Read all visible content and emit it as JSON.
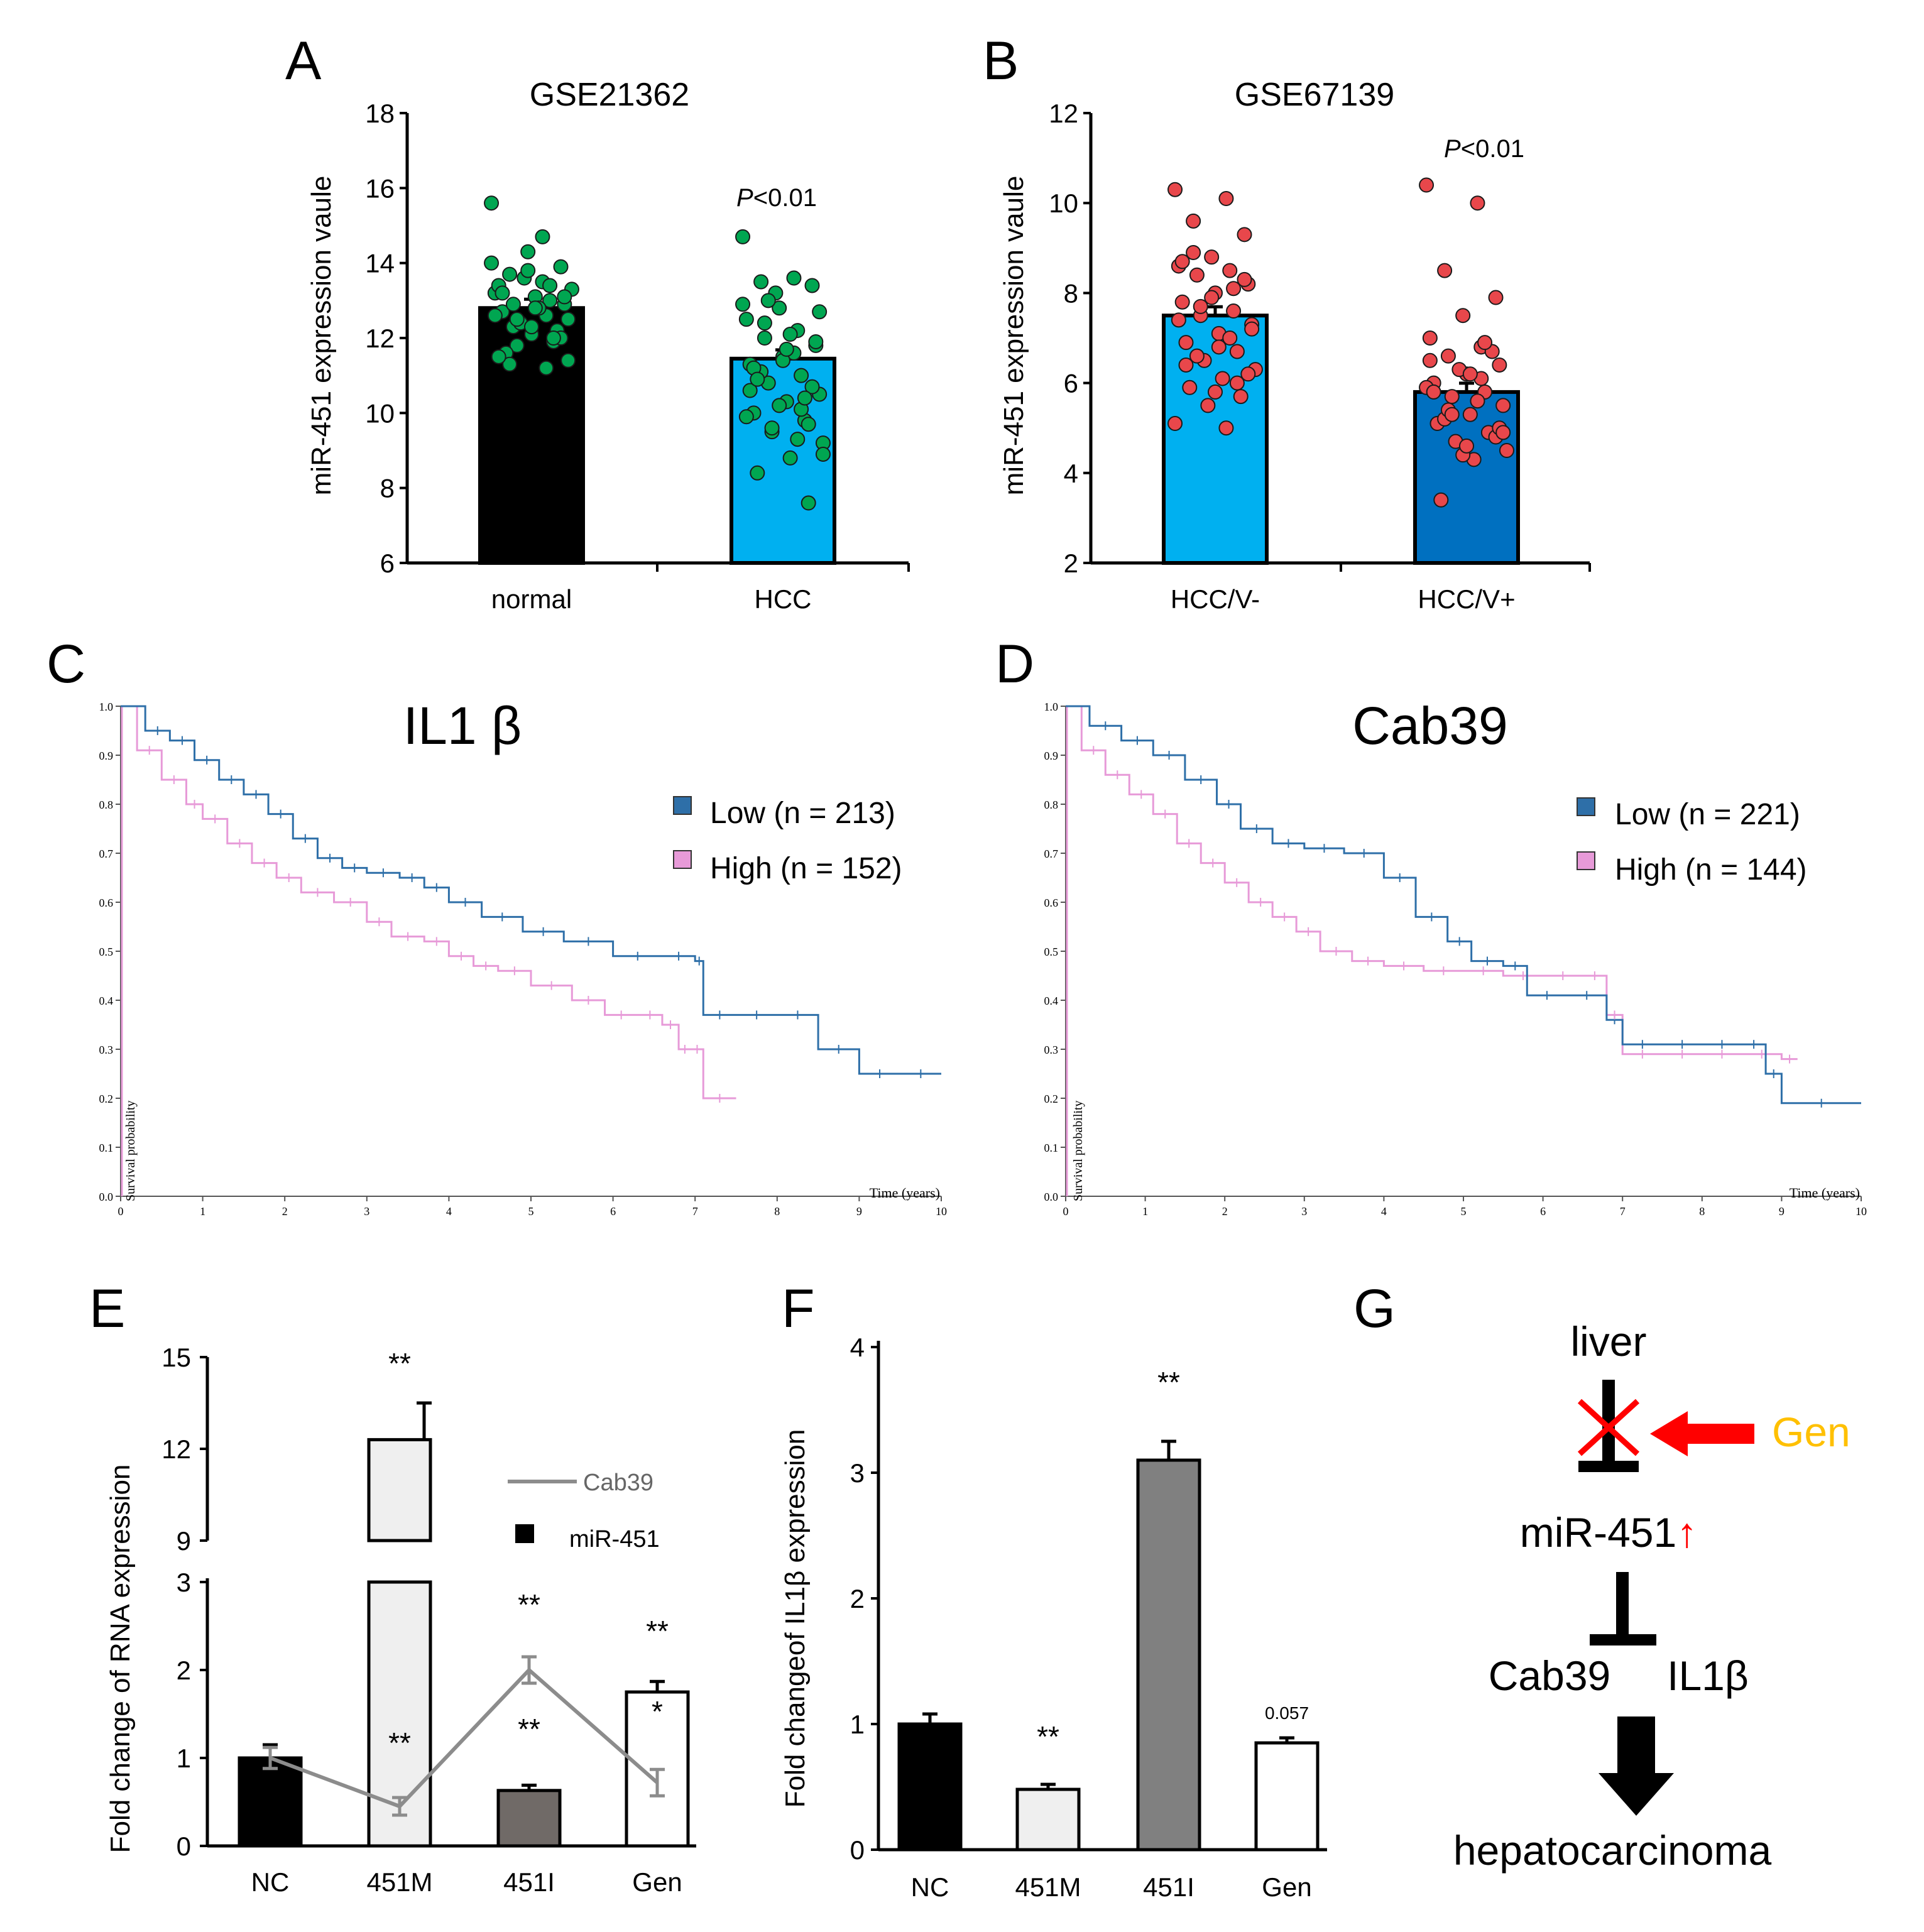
{
  "colors": {
    "black": "#000000",
    "light_blue": "#00b0f0",
    "dark_blue": "#0070c0",
    "green_dot": "#00a651",
    "red_dot": "#e8474b",
    "km_low": "#2e6fa8",
    "km_high": "#e79ad8",
    "light_gray": "#efefef",
    "mid_gray": "#808080",
    "dark_gray": "#706a67",
    "line_gray": "#8c8c8c",
    "red": "#ff0000",
    "orange": "#ffc000"
  },
  "chart_data": [
    {
      "panel": "A",
      "type": "bar",
      "title": "GSE21362",
      "ylabel": "miR-451 expression vaule",
      "ylim": [
        6,
        18
      ],
      "yticks": [
        "6",
        "8",
        "10",
        "12",
        "14",
        "16",
        "18"
      ],
      "categories": [
        "normal",
        "HCC"
      ],
      "values": [
        12.8,
        11.45
      ],
      "annotation": {
        "italic": "P",
        "text": "<0.01",
        "category": "HCC"
      },
      "points": [
        [
          15.6,
          13.5,
          13.7,
          13.9,
          14.3,
          13.2,
          12.6,
          12.3,
          12.9,
          12.1,
          13.4,
          13.0,
          11.8,
          12.5,
          13.1,
          12.7,
          11.9,
          12.4,
          13.3,
          12.8,
          11.6,
          12.2,
          13.6,
          14.0,
          14.7,
          11.3,
          12.0,
          13.8,
          12.6,
          11.2,
          12.9,
          13.1,
          12.3,
          11.5,
          13.4,
          12.5,
          11.4,
          12.8,
          13.2,
          12.0
        ],
        [
          14.7,
          13.6,
          13.5,
          13.4,
          12.8,
          12.5,
          12.2,
          12.0,
          11.8,
          11.5,
          11.3,
          11.0,
          10.8,
          10.5,
          10.3,
          10.0,
          9.8,
          9.5,
          9.2,
          8.8,
          8.4,
          7.6,
          13.2,
          12.9,
          11.6,
          11.1,
          10.7,
          10.2,
          9.9,
          9.3,
          12.4,
          11.9,
          11.4,
          10.6,
          10.1,
          13.0,
          12.7,
          11.7,
          11.2,
          10.4,
          9.6,
          8.9,
          12.1,
          10.9,
          9.7
        ]
      ]
    },
    {
      "panel": "B",
      "type": "bar",
      "title": "GSE67139",
      "ylabel": "miR-451 expression vaule",
      "ylim": [
        2,
        12
      ],
      "yticks": [
        "2",
        "4",
        "6",
        "8",
        "10",
        "12"
      ],
      "categories": [
        "HCC/V-",
        "HCC/V+"
      ],
      "values": [
        7.5,
        5.8
      ],
      "annotation": {
        "italic": "P",
        "text": "<0.01",
        "category": "HCC/V+"
      },
      "points": [
        [
          10.3,
          10.1,
          9.6,
          9.3,
          8.8,
          8.6,
          8.5,
          8.4,
          8.2,
          8.0,
          7.8,
          7.6,
          7.5,
          7.3,
          7.1,
          6.9,
          6.7,
          6.5,
          6.3,
          6.1,
          5.9,
          5.7,
          5.5,
          5.1,
          5.0,
          8.9,
          8.3,
          7.9,
          7.4,
          7.0,
          6.6,
          6.2,
          5.8,
          8.7,
          8.1,
          7.7,
          7.2,
          6.8,
          6.4,
          6.0
        ],
        [
          10.4,
          10.0,
          8.5,
          7.9,
          7.5,
          7.0,
          6.8,
          6.6,
          6.4,
          6.2,
          6.0,
          5.8,
          5.7,
          5.5,
          5.3,
          5.1,
          4.9,
          4.7,
          4.5,
          4.3,
          3.4,
          6.7,
          6.3,
          5.9,
          5.6,
          5.2,
          4.8,
          4.4,
          6.5,
          6.1,
          5.4,
          5.0,
          4.6,
          5.8,
          6.9,
          5.3,
          4.9,
          6.2
        ]
      ]
    },
    {
      "panel": "C",
      "type": "line",
      "subtype": "kaplan-meier",
      "title": "IL1 β",
      "xlabel": "Time (years)",
      "ylabel": "Survival probability",
      "xlim": [
        0,
        10
      ],
      "ylim": [
        0,
        1
      ],
      "xticks": [
        "0",
        "1",
        "2",
        "3",
        "4",
        "5",
        "6",
        "7",
        "8",
        "9",
        "10"
      ],
      "yticks": [
        "0.0",
        "0.1",
        "0.2",
        "0.3",
        "0.4",
        "0.5",
        "0.6",
        "0.7",
        "0.8",
        "0.9",
        "1.0"
      ],
      "legend": [
        "Low (n = 213)",
        "High (n = 152)"
      ],
      "series": [
        {
          "name": "Low (n = 213)",
          "x": [
            0,
            0.3,
            0.6,
            0.9,
            1.2,
            1.5,
            1.8,
            2.1,
            2.4,
            2.7,
            3.0,
            3.4,
            3.7,
            4.0,
            4.4,
            4.9,
            5.4,
            6.0,
            6.6,
            7.0,
            7.1,
            7.5,
            8.0,
            8.5,
            9.0,
            9.5,
            10.0
          ],
          "y": [
            1.0,
            0.95,
            0.93,
            0.89,
            0.85,
            0.82,
            0.78,
            0.73,
            0.69,
            0.67,
            0.66,
            0.65,
            0.63,
            0.6,
            0.57,
            0.54,
            0.52,
            0.49,
            0.49,
            0.48,
            0.37,
            0.37,
            0.37,
            0.3,
            0.25,
            0.25,
            0.25
          ]
        },
        {
          "name": "High (n = 152)",
          "x": [
            0,
            0.2,
            0.5,
            0.8,
            1.0,
            1.3,
            1.6,
            1.9,
            2.2,
            2.6,
            3.0,
            3.3,
            3.7,
            4.0,
            4.3,
            4.6,
            5.0,
            5.5,
            5.9,
            6.3,
            6.6,
            6.8,
            6.95,
            7.1,
            7.5
          ],
          "y": [
            1.0,
            0.91,
            0.85,
            0.8,
            0.77,
            0.72,
            0.68,
            0.65,
            0.62,
            0.6,
            0.56,
            0.53,
            0.52,
            0.49,
            0.47,
            0.46,
            0.43,
            0.4,
            0.37,
            0.37,
            0.35,
            0.3,
            0.3,
            0.2,
            0.2
          ]
        }
      ]
    },
    {
      "panel": "D",
      "type": "line",
      "subtype": "kaplan-meier",
      "title": "Cab39",
      "xlabel": "Time (years)",
      "ylabel": "Survival probability",
      "xlim": [
        0,
        10
      ],
      "ylim": [
        0,
        1
      ],
      "xticks": [
        "0",
        "1",
        "2",
        "3",
        "4",
        "5",
        "6",
        "7",
        "8",
        "9",
        "10"
      ],
      "yticks": [
        "0.0",
        "0.1",
        "0.2",
        "0.3",
        "0.4",
        "0.5",
        "0.6",
        "0.7",
        "0.8",
        "0.9",
        "1.0"
      ],
      "legend": [
        "Low (n = 221)",
        "High (n = 144)"
      ],
      "series": [
        {
          "name": "Low (n = 221)",
          "x": [
            0,
            0.3,
            0.7,
            1.1,
            1.5,
            1.9,
            2.2,
            2.6,
            3.0,
            3.5,
            4.0,
            4.4,
            4.8,
            5.1,
            5.5,
            5.8,
            6.3,
            6.8,
            7.0,
            7.5,
            8.0,
            8.5,
            8.8,
            9.0,
            10.0
          ],
          "y": [
            1.0,
            0.96,
            0.93,
            0.9,
            0.85,
            0.8,
            0.75,
            0.72,
            0.71,
            0.7,
            0.65,
            0.57,
            0.52,
            0.48,
            0.47,
            0.41,
            0.41,
            0.36,
            0.31,
            0.31,
            0.31,
            0.31,
            0.25,
            0.19,
            0.19
          ]
        },
        {
          "name": "High (n = 144)",
          "x": [
            0,
            0.2,
            0.5,
            0.8,
            1.1,
            1.4,
            1.7,
            2.0,
            2.3,
            2.6,
            2.9,
            3.2,
            3.6,
            4.0,
            4.5,
            5.0,
            5.5,
            6.0,
            6.5,
            6.8,
            7.0,
            7.5,
            8.0,
            8.5,
            9.0,
            9.2
          ],
          "y": [
            1.0,
            0.91,
            0.86,
            0.82,
            0.78,
            0.72,
            0.68,
            0.64,
            0.6,
            0.57,
            0.54,
            0.5,
            0.48,
            0.47,
            0.46,
            0.46,
            0.45,
            0.45,
            0.45,
            0.37,
            0.29,
            0.29,
            0.29,
            0.29,
            0.28,
            0.28
          ]
        }
      ]
    },
    {
      "panel": "E",
      "type": "bar",
      "subtype": "broken-axis bar + line",
      "ylabel": "Fold change of RNA expression",
      "yticks_lower": [
        "0",
        "1",
        "2",
        "3"
      ],
      "yticks_upper": [
        "9",
        "12",
        "15"
      ],
      "ylim_lower": [
        0,
        3
      ],
      "ylim_upper": [
        9,
        15
      ],
      "categories": [
        "NC",
        "451M",
        "451I",
        "Gen"
      ],
      "legend": [
        "Cab39",
        "miR-451"
      ],
      "series": [
        {
          "name": "miR-451",
          "type": "bar",
          "values": [
            1.0,
            12.3,
            0.63,
            1.75
          ],
          "errors": [
            0.15,
            1.2,
            0.06,
            0.12
          ]
        },
        {
          "name": "Cab39",
          "type": "line",
          "values": [
            1.0,
            0.45,
            2.0,
            0.72
          ],
          "errors": [
            0.12,
            0.1,
            0.15,
            0.15
          ]
        }
      ],
      "significance": {
        "bar": [
          "",
          "**",
          "**",
          "**"
        ],
        "line": [
          "",
          "**",
          "**",
          "*"
        ]
      }
    },
    {
      "panel": "F",
      "type": "bar",
      "ylabel": "Fold changeof IL1β expression",
      "ylim": [
        0,
        4
      ],
      "yticks": [
        "0",
        "1",
        "2",
        "3",
        "4"
      ],
      "categories": [
        "NC",
        "451M",
        "451I",
        "Gen"
      ],
      "values": [
        1.0,
        0.48,
        3.1,
        0.85
      ],
      "errors": [
        0.08,
        0.04,
        0.15,
        0.04
      ],
      "significance": [
        "",
        "**",
        "**",
        "0.057"
      ]
    }
  ],
  "panel_labels": [
    "A",
    "B",
    "C",
    "D",
    "E",
    "F",
    "G"
  ],
  "diagram": {
    "liver": "liver",
    "gen": "Gen",
    "mir": "miR-451",
    "mir_arrow": "↑",
    "cab39": "Cab39",
    "il1b": "IL1β",
    "outcome": "hepatocarcinoma"
  }
}
